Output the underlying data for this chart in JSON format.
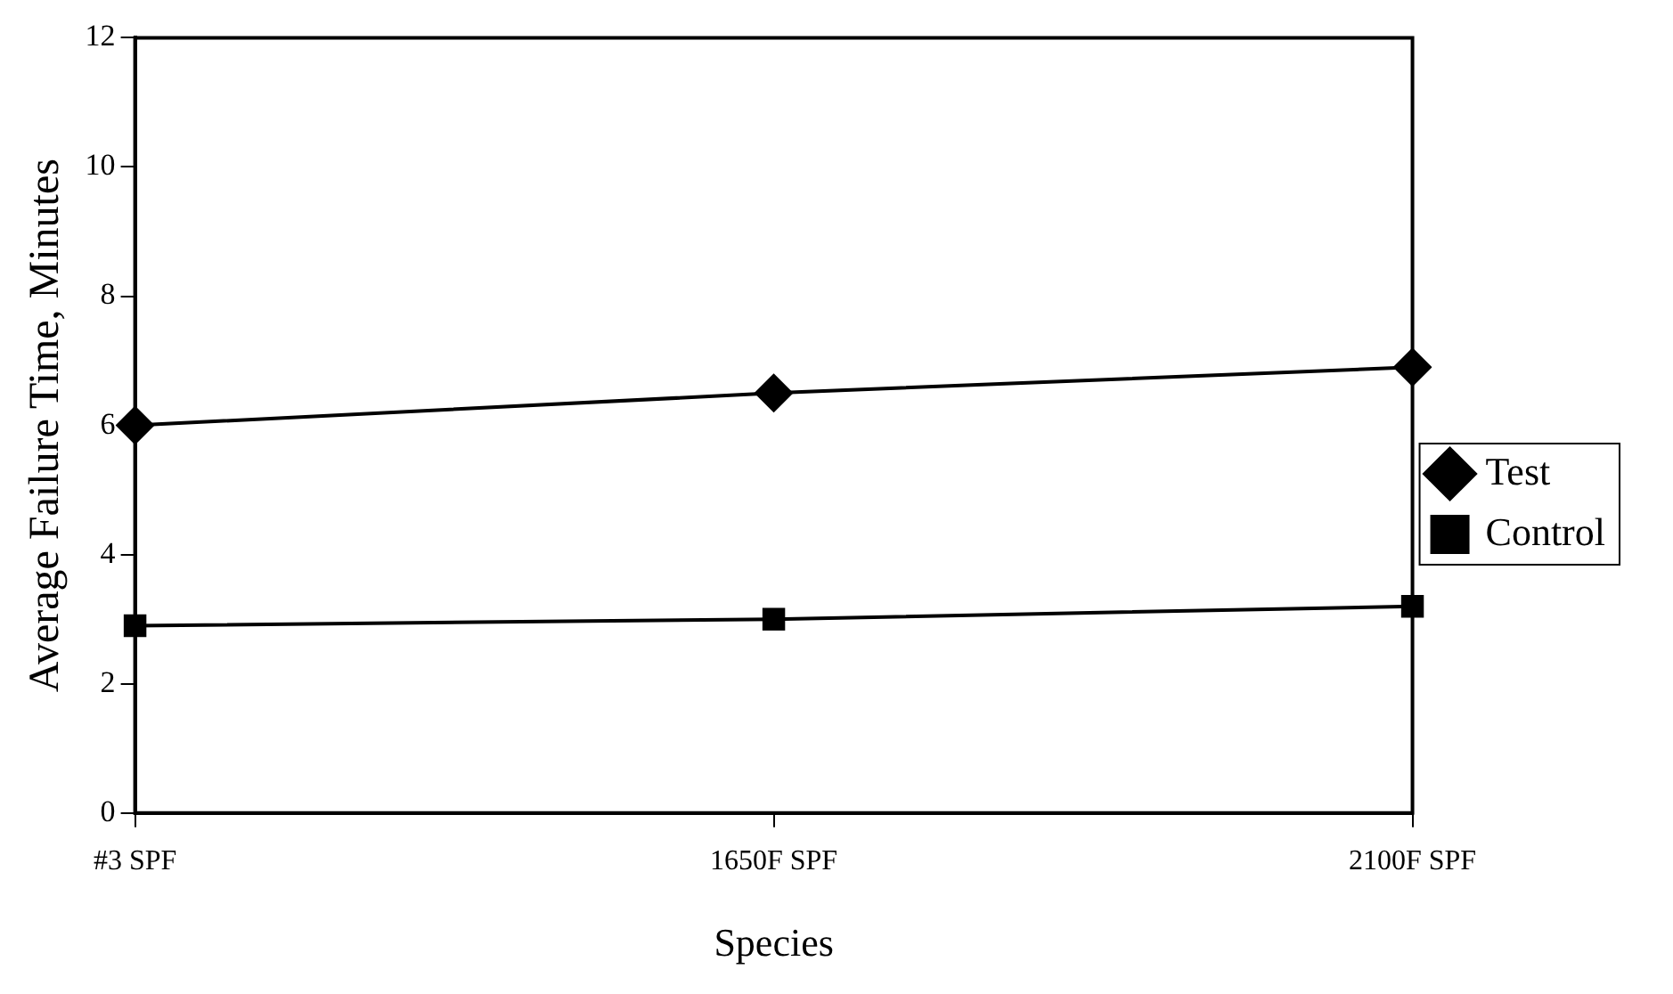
{
  "chart_data": {
    "type": "line",
    "xlabel": "Species",
    "ylabel": "Average Failure Time, Minutes",
    "categories": [
      "#3 SPF",
      "1650F SPF",
      "2100F SPF"
    ],
    "series": [
      {
        "name": "Test",
        "color": "#000000",
        "marker": "diamond",
        "values": [
          6.0,
          6.5,
          6.9
        ]
      },
      {
        "name": "Control",
        "color": "#000000",
        "marker": "square",
        "values": [
          2.9,
          3.0,
          3.2
        ]
      }
    ],
    "ylim": [
      0,
      12
    ],
    "yticks": [
      0,
      2,
      4,
      6,
      8,
      10,
      12
    ],
    "grid": false,
    "legend": "right",
    "line_style": "solid"
  }
}
